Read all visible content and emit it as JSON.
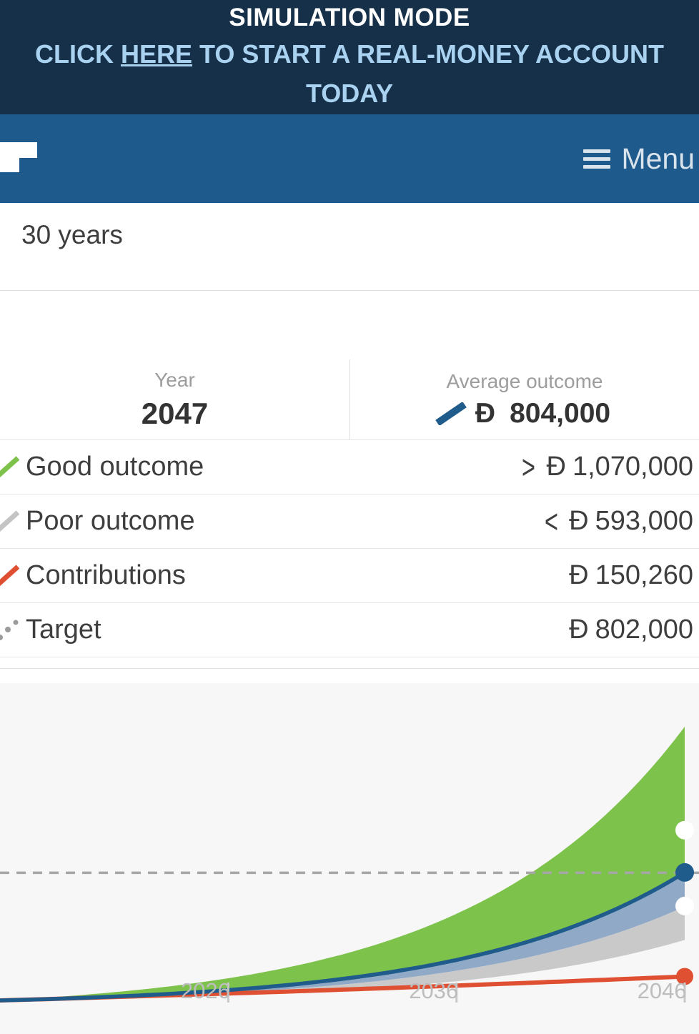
{
  "banner": {
    "title": "SIMULATION MODE",
    "link_pre": "CLICK ",
    "link_text": "HERE",
    "link_post": " TO START A REAL-MONEY ACCOUNT TODAY"
  },
  "header": {
    "menu_label": "Menu"
  },
  "summary": {
    "duration": "30 years"
  },
  "stats": {
    "year_label": "Year",
    "year_value": "2047",
    "average_label": "Average outcome",
    "average_currency": "Đ",
    "average_value": "804,000",
    "average_color": "#1f5c8b",
    "rows": [
      {
        "label": "Good outcome",
        "comparator": ">",
        "currency": "Đ",
        "value": "1,070,000",
        "color": "#7dc24b"
      },
      {
        "label": "Poor outcome",
        "comparator": "<",
        "currency": "Đ",
        "value": "593,000",
        "color": "#c4c4c4"
      },
      {
        "label": "Contributions",
        "comparator": "",
        "currency": "Đ",
        "value": "150,260",
        "color": "#df5033"
      },
      {
        "label": "Target",
        "comparator": "",
        "currency": "Đ",
        "value": "802,000",
        "color": "#9b9b9b"
      }
    ]
  },
  "chart_data": {
    "type": "area",
    "x_start_year": 2017,
    "x_end_year": 2047,
    "x_tick_labels": [
      "2026",
      "2036",
      "2046"
    ],
    "selected_year": 2047,
    "ylim": [
      0,
      2000000
    ],
    "grid": false,
    "bands": [
      {
        "name": "good-outcome-range",
        "color": "#7dc24b",
        "end_top": 1720000,
        "end_bottom": 804000,
        "shape_r": 3.2
      },
      {
        "name": "mid-range",
        "color": "#8fa9c7",
        "end_top": 804000,
        "end_bottom": 590000,
        "shape_r": 3.2
      },
      {
        "name": "poor-outcome-range",
        "color": "#c9c9c9",
        "end_top": 590000,
        "end_bottom": 380000,
        "shape_r": 3.2
      }
    ],
    "series": [
      {
        "id": "target",
        "name": "Target",
        "kind": "hline",
        "value": 802000,
        "color": "#a6a6a6",
        "dash": "13 10",
        "stroke_width": 3.5
      },
      {
        "id": "contributions",
        "name": "Contributions",
        "kind": "curve",
        "end_value": 150260,
        "start_value": 0,
        "color": "#df5033",
        "shape_r": 0.4,
        "stroke_width": 6,
        "marker_fill": "#df5033",
        "marker_r": 12
      },
      {
        "id": "average-outcome",
        "name": "Average outcome",
        "kind": "curve",
        "end_value": 804000,
        "start_value": 0,
        "color": "#1f5c8b",
        "shape_r": 3.2,
        "stroke_width": 5.5,
        "marker_fill": "#1f5c8b",
        "marker_r": 13
      },
      {
        "id": "good-outcome",
        "name": "Good outcome",
        "kind": "marker",
        "end_value": 1070000,
        "marker_fill": "#ffffff",
        "marker_r": 13
      },
      {
        "id": "poor-outcome",
        "name": "Poor outcome",
        "kind": "marker",
        "end_value": 593000,
        "marker_fill": "#ffffff",
        "marker_r": 13
      }
    ]
  }
}
